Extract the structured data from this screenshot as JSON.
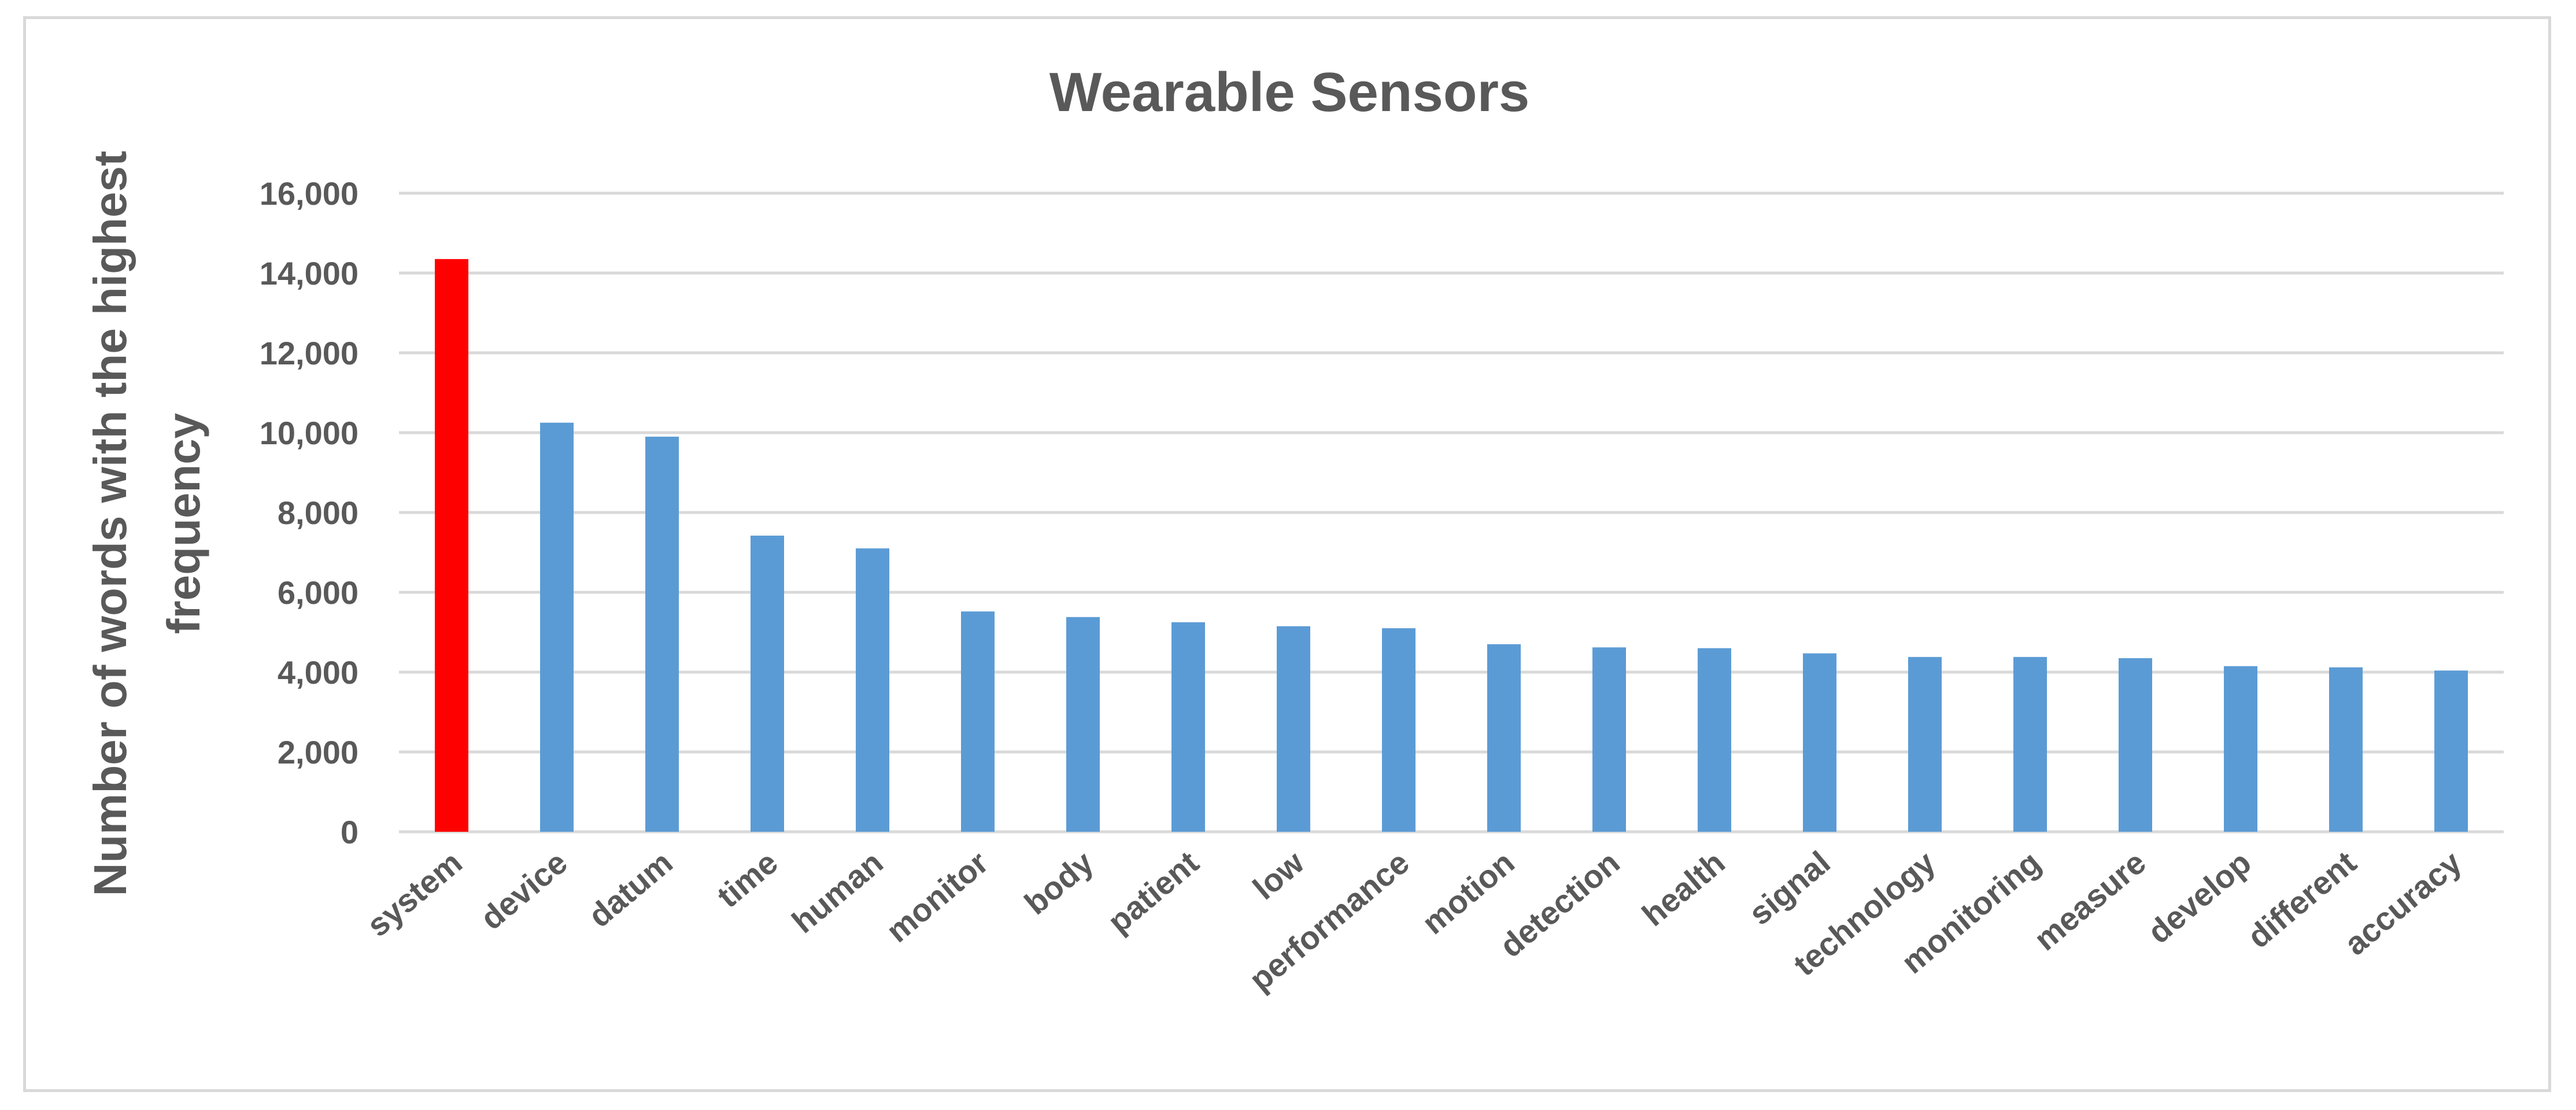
{
  "chart_data": {
    "type": "bar",
    "title": "Wearable Sensors",
    "xlabel": "",
    "ylabel": "Number of words with the highest frequency",
    "ylabel_lines": [
      "Number of words with the highest",
      "frequency"
    ],
    "ylim": [
      0,
      16000
    ],
    "yticks": [
      0,
      2000,
      4000,
      6000,
      8000,
      10000,
      12000,
      14000,
      16000
    ],
    "ytick_labels": [
      "0",
      "2,000",
      "4,000",
      "6,000",
      "8,000",
      "10,000",
      "12,000",
      "14,000",
      "16,000"
    ],
    "grid": true,
    "legend": "none",
    "categories": [
      "system",
      "device",
      "datum",
      "time",
      "human",
      "monitor",
      "body",
      "patient",
      "low",
      "performance",
      "motion",
      "detection",
      "health",
      "signal",
      "technology",
      "monitoring",
      "measure",
      "develop",
      "different",
      "accuracy"
    ],
    "values": [
      14350,
      10250,
      9900,
      7420,
      7100,
      5520,
      5380,
      5250,
      5150,
      5100,
      4700,
      4620,
      4600,
      4470,
      4380,
      4380,
      4350,
      4150,
      4120,
      4040
    ],
    "colors": {
      "default": "#5b9bd5",
      "highlight": "#ff0000",
      "highlight_category": "system",
      "grid": "#d9d9d9",
      "text": "#595959"
    }
  }
}
